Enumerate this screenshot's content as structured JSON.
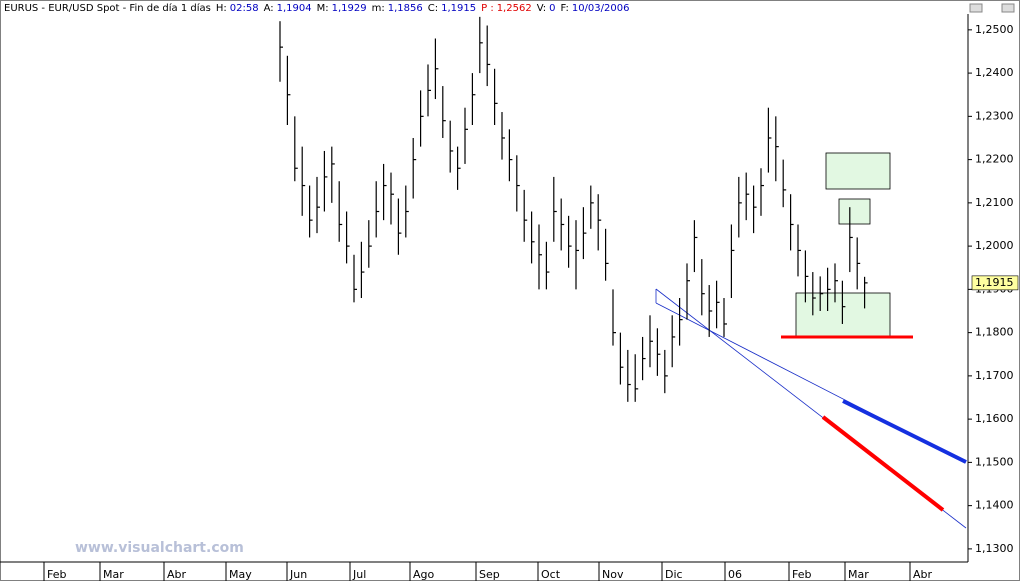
{
  "chart_data": {
    "type": "ohlc",
    "header": {
      "symbol": "EURUS - EUR/USD Spot - Fin de día 1 días",
      "fields": [
        {
          "label": "H:",
          "value": "02:58"
        },
        {
          "label": "A:",
          "value": "1,1904"
        },
        {
          "label": "M:",
          "value": "1,1929"
        },
        {
          "label": "m:",
          "value": "1,1856"
        },
        {
          "label": "C:",
          "value": "1,1915"
        },
        {
          "label": "P :",
          "value": "1,2562",
          "color": "#e00000"
        },
        {
          "label": "V:",
          "value": "0"
        },
        {
          "label": "F:",
          "value": "10/03/2006"
        }
      ]
    },
    "watermark": "www.visualchart.com",
    "categories": [
      "Feb",
      "Mar",
      "Abr",
      "May",
      "Jun",
      "Jul",
      "Ago",
      "Sep",
      "Oct",
      "Nov",
      "Dic",
      "06",
      "Feb",
      "Mar",
      "Abr"
    ],
    "color": "#000000",
    "high": [
      1.252,
      1.244,
      1.23,
      1.223,
      1.214,
      1.216,
      1.222,
      1.223,
      1.215,
      1.208,
      1.198,
      1.201,
      1.206,
      1.215,
      1.219,
      1.217,
      1.211,
      1.214,
      1.225,
      1.236,
      1.242,
      1.248,
      1.237,
      1.229,
      1.223,
      1.232,
      1.24,
      1.253,
      1.251,
      1.241,
      1.231,
      1.227,
      1.221,
      1.213,
      1.208,
      1.205,
      1.201,
      1.216,
      1.211,
      1.207,
      1.206,
      1.209,
      1.214,
      1.212,
      1.204,
      1.19,
      1.18,
      1.176,
      1.175,
      1.179,
      1.184,
      1.181,
      1.176,
      1.184,
      1.188,
      1.196,
      1.206,
      1.197,
      1.191,
      1.192,
      1.188,
      1.205,
      1.216,
      1.217,
      1.214,
      1.218,
      1.232,
      1.23,
      1.22,
      1.212,
      1.205,
      1.199,
      1.194,
      1.193,
      1.195,
      1.196,
      1.192,
      1.209,
      1.202,
      1.1929
    ],
    "low": [
      1.238,
      1.228,
      1.215,
      1.207,
      1.202,
      1.203,
      1.208,
      1.21,
      1.201,
      1.196,
      1.187,
      1.188,
      1.195,
      1.202,
      1.206,
      1.205,
      1.198,
      1.202,
      1.211,
      1.223,
      1.23,
      1.234,
      1.225,
      1.217,
      1.213,
      1.219,
      1.228,
      1.24,
      1.237,
      1.228,
      1.22,
      1.215,
      1.208,
      1.201,
      1.196,
      1.19,
      1.19,
      1.201,
      1.199,
      1.195,
      1.19,
      1.197,
      1.204,
      1.199,
      1.192,
      1.177,
      1.168,
      1.164,
      1.164,
      1.169,
      1.172,
      1.17,
      1.166,
      1.172,
      1.177,
      1.183,
      1.194,
      1.184,
      1.179,
      1.181,
      1.179,
      1.188,
      1.202,
      1.206,
      1.203,
      1.207,
      1.217,
      1.215,
      1.209,
      1.199,
      1.193,
      1.187,
      1.184,
      1.185,
      1.185,
      1.187,
      1.182,
      1.194,
      1.19,
      1.1856
    ],
    "close": [
      1.246,
      1.235,
      1.218,
      1.214,
      1.206,
      1.209,
      1.216,
      1.219,
      1.205,
      1.2,
      1.19,
      1.194,
      1.2,
      1.208,
      1.214,
      1.212,
      1.203,
      1.208,
      1.22,
      1.23,
      1.236,
      1.241,
      1.229,
      1.222,
      1.218,
      1.227,
      1.235,
      1.247,
      1.242,
      1.233,
      1.225,
      1.22,
      1.214,
      1.206,
      1.201,
      1.198,
      1.194,
      1.208,
      1.205,
      1.2,
      1.199,
      1.203,
      1.21,
      1.206,
      1.196,
      1.18,
      1.172,
      1.168,
      1.167,
      1.174,
      1.178,
      1.175,
      1.17,
      1.179,
      1.183,
      1.192,
      1.202,
      1.189,
      1.185,
      1.187,
      1.182,
      1.199,
      1.21,
      1.212,
      1.209,
      1.214,
      1.225,
      1.223,
      1.213,
      1.205,
      1.199,
      1.193,
      1.188,
      1.189,
      1.19,
      1.192,
      1.186,
      1.202,
      1.196,
      1.1915
    ],
    "last_price": {
      "value": 1.1915,
      "label": "1,1915"
    },
    "ylim": [
      1.1272,
      1.2532
    ],
    "yticks": [
      {
        "value": 1.13,
        "label": "1,1300"
      },
      {
        "value": 1.14,
        "label": "1,1400"
      },
      {
        "value": 1.15,
        "label": "1,1500"
      },
      {
        "value": 1.16,
        "label": "1,1600"
      },
      {
        "value": 1.17,
        "label": "1,1700"
      },
      {
        "value": 1.18,
        "label": "1,1800"
      },
      {
        "value": 1.19,
        "label": "1,1900"
      },
      {
        "value": 1.2,
        "label": "1,2000"
      },
      {
        "value": 1.21,
        "label": "1,2100"
      },
      {
        "value": 1.22,
        "label": "1,2200"
      },
      {
        "value": 1.23,
        "label": "1,2300"
      },
      {
        "value": 1.24,
        "label": "1,2400"
      },
      {
        "value": 1.25,
        "label": "1,2500"
      }
    ]
  }
}
